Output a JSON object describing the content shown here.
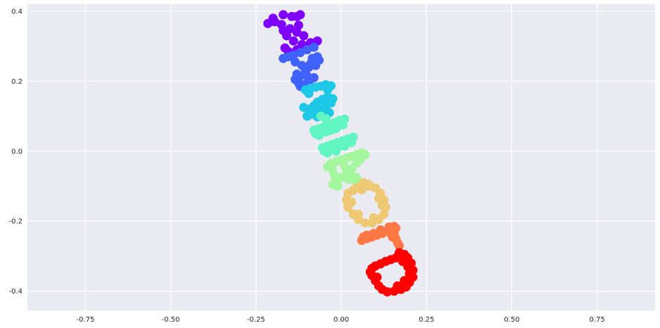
{
  "chart_data": {
    "type": "scatter",
    "title": "",
    "xlabel": "",
    "ylabel": "",
    "xlim": [
      -0.92,
      0.92
    ],
    "ylim": [
      -0.455,
      0.42
    ],
    "xticks": [
      -0.75,
      -0.5,
      -0.25,
      0.0,
      0.25,
      0.5,
      0.75
    ],
    "xtick_labels": [
      "-0.75",
      "-0.50",
      "-0.25",
      "0.00",
      "0.25",
      "0.50",
      "0.75"
    ],
    "yticks": [
      -0.4,
      -0.2,
      0.0,
      0.2,
      0.4
    ],
    "ytick_labels": [
      "-0.4",
      "-0.2",
      "0.0",
      "0.2",
      "0.4"
    ],
    "grid": true,
    "background_color": "#eaeaf2",
    "colormap": "rainbow",
    "groups": [
      {
        "color": "#8000ff",
        "points": [
          [
            -0.215,
            0.365
          ],
          [
            -0.195,
            0.37
          ],
          [
            -0.175,
            0.362
          ],
          [
            -0.17,
            0.345
          ],
          [
            -0.15,
            0.35
          ],
          [
            -0.13,
            0.34
          ],
          [
            -0.125,
            0.36
          ],
          [
            -0.13,
            0.385
          ],
          [
            -0.12,
            0.39
          ],
          [
            -0.145,
            0.385
          ],
          [
            -0.17,
            0.39
          ],
          [
            -0.2,
            0.38
          ],
          [
            -0.16,
            0.33
          ],
          [
            -0.11,
            0.33
          ],
          [
            -0.14,
            0.315
          ],
          [
            -0.115,
            0.305
          ],
          [
            -0.09,
            0.31
          ],
          [
            -0.07,
            0.315
          ],
          [
            -0.165,
            0.295
          ],
          [
            -0.155,
            0.285
          ],
          [
            -0.13,
            0.29
          ],
          [
            -0.105,
            0.295
          ],
          [
            -0.08,
            0.305
          ]
        ]
      },
      {
        "color": "#4062fa",
        "points": [
          [
            -0.17,
            0.265
          ],
          [
            -0.155,
            0.27
          ],
          [
            -0.14,
            0.275
          ],
          [
            -0.12,
            0.282
          ],
          [
            -0.1,
            0.29
          ],
          [
            -0.08,
            0.297
          ],
          [
            -0.135,
            0.255
          ],
          [
            -0.115,
            0.245
          ],
          [
            -0.095,
            0.24
          ],
          [
            -0.075,
            0.245
          ],
          [
            -0.065,
            0.26
          ],
          [
            -0.07,
            0.27
          ],
          [
            -0.085,
            0.265
          ],
          [
            -0.09,
            0.25
          ],
          [
            -0.105,
            0.23
          ],
          [
            -0.12,
            0.215
          ],
          [
            -0.135,
            0.205
          ],
          [
            -0.125,
            0.195
          ],
          [
            -0.11,
            0.19
          ],
          [
            -0.095,
            0.2
          ],
          [
            -0.08,
            0.21
          ],
          [
            -0.1,
            0.215
          ],
          [
            -0.12,
            0.185
          ],
          [
            -0.13,
            0.22
          ]
        ]
      },
      {
        "color": "#1cc8e6",
        "points": [
          [
            -0.105,
            0.175
          ],
          [
            -0.09,
            0.18
          ],
          [
            -0.075,
            0.183
          ],
          [
            -0.06,
            0.186
          ],
          [
            -0.045,
            0.19
          ],
          [
            -0.03,
            0.187
          ],
          [
            -0.095,
            0.165
          ],
          [
            -0.04,
            0.175
          ],
          [
            -0.11,
            0.125
          ],
          [
            -0.095,
            0.12
          ],
          [
            -0.08,
            0.13
          ],
          [
            -0.07,
            0.14
          ],
          [
            -0.055,
            0.148
          ],
          [
            -0.04,
            0.155
          ],
          [
            -0.025,
            0.15
          ],
          [
            -0.03,
            0.138
          ],
          [
            -0.045,
            0.13
          ],
          [
            -0.06,
            0.12
          ],
          [
            -0.075,
            0.11
          ],
          [
            -0.09,
            0.105
          ],
          [
            -0.1,
            0.1
          ],
          [
            -0.055,
            0.105
          ],
          [
            -0.035,
            0.11
          ],
          [
            -0.07,
            0.098
          ]
        ]
      },
      {
        "color": "#60f5c1",
        "points": [
          [
            -0.08,
            0.06
          ],
          [
            -0.065,
            0.065
          ],
          [
            -0.05,
            0.07
          ],
          [
            -0.035,
            0.076
          ],
          [
            -0.02,
            0.082
          ],
          [
            -0.005,
            0.088
          ],
          [
            0.01,
            0.092
          ],
          [
            0.005,
            0.075
          ],
          [
            -0.015,
            0.065
          ],
          [
            -0.03,
            0.06
          ],
          [
            -0.045,
            0.055
          ],
          [
            -0.065,
            0.045
          ],
          [
            -0.075,
            0.05
          ],
          [
            -0.06,
            0.1
          ],
          [
            -0.045,
            0.093
          ],
          [
            -0.055,
            0.01
          ],
          [
            -0.04,
            0.015
          ],
          [
            -0.025,
            0.02
          ],
          [
            -0.01,
            0.025
          ],
          [
            0.005,
            0.03
          ],
          [
            0.02,
            0.035
          ],
          [
            0.035,
            0.04
          ],
          [
            0.03,
            0.025
          ],
          [
            0.01,
            0.015
          ],
          [
            -0.01,
            0.01
          ],
          [
            -0.03,
            0.005
          ],
          [
            -0.05,
            0.0
          ],
          [
            -0.04,
            -0.005
          ],
          [
            -0.015,
            0.0
          ]
        ]
      },
      {
        "color": "#a4f79c",
        "points": [
          [
            -0.04,
            -0.045
          ],
          [
            -0.03,
            -0.035
          ],
          [
            -0.015,
            -0.03
          ],
          [
            0.0,
            -0.025
          ],
          [
            0.015,
            -0.02
          ],
          [
            0.03,
            -0.015
          ],
          [
            0.045,
            -0.01
          ],
          [
            0.06,
            -0.005
          ],
          [
            0.07,
            -0.01
          ],
          [
            0.055,
            -0.025
          ],
          [
            -0.025,
            -0.055
          ],
          [
            -0.02,
            -0.07
          ],
          [
            -0.015,
            -0.085
          ],
          [
            -0.01,
            -0.1
          ],
          [
            -0.025,
            -0.095
          ],
          [
            0.0,
            -0.075
          ],
          [
            0.015,
            -0.065
          ],
          [
            0.03,
            -0.07
          ],
          [
            0.045,
            -0.075
          ],
          [
            0.04,
            -0.085
          ],
          [
            0.02,
            -0.08
          ],
          [
            0.03,
            -0.05
          ],
          [
            0.01,
            -0.045
          ],
          [
            0.045,
            -0.035
          ]
        ]
      },
      {
        "color": "#eec873",
        "points": [
          [
            0.06,
            -0.11
          ],
          [
            0.08,
            -0.1
          ],
          [
            0.1,
            -0.105
          ],
          [
            0.115,
            -0.12
          ],
          [
            0.125,
            -0.14
          ],
          [
            0.13,
            -0.16
          ],
          [
            0.125,
            -0.18
          ],
          [
            0.11,
            -0.195
          ],
          [
            0.09,
            -0.205
          ],
          [
            0.07,
            -0.205
          ],
          [
            0.05,
            -0.195
          ],
          [
            0.035,
            -0.18
          ],
          [
            0.02,
            -0.16
          ],
          [
            0.015,
            -0.14
          ],
          [
            0.02,
            -0.12
          ],
          [
            0.035,
            -0.112
          ],
          [
            0.045,
            -0.105
          ],
          [
            0.065,
            -0.09
          ],
          [
            0.08,
            -0.095
          ],
          [
            0.11,
            -0.135
          ],
          [
            0.05,
            -0.18
          ],
          [
            0.03,
            -0.145
          ],
          [
            0.095,
            -0.19
          ],
          [
            0.12,
            -0.155
          ]
        ]
      },
      {
        "color": "#ff7843",
        "points": [
          [
            0.06,
            -0.255
          ],
          [
            0.075,
            -0.25
          ],
          [
            0.09,
            -0.245
          ],
          [
            0.105,
            -0.24
          ],
          [
            0.12,
            -0.235
          ],
          [
            0.135,
            -0.23
          ],
          [
            0.15,
            -0.225
          ],
          [
            0.16,
            -0.22
          ],
          [
            0.155,
            -0.215
          ],
          [
            0.14,
            -0.217
          ],
          [
            0.115,
            -0.225
          ],
          [
            0.095,
            -0.235
          ],
          [
            0.075,
            -0.24
          ],
          [
            0.065,
            -0.245
          ],
          [
            0.155,
            -0.235
          ],
          [
            0.16,
            -0.25
          ],
          [
            0.165,
            -0.262
          ],
          [
            0.17,
            -0.27
          ],
          [
            0.15,
            -0.245
          ]
        ]
      },
      {
        "color": "#ff0000",
        "points": [
          [
            0.09,
            -0.335
          ],
          [
            0.1,
            -0.328
          ],
          [
            0.115,
            -0.322
          ],
          [
            0.13,
            -0.315
          ],
          [
            0.145,
            -0.31
          ],
          [
            0.16,
            -0.305
          ],
          [
            0.175,
            -0.3
          ],
          [
            0.185,
            -0.295
          ],
          [
            0.195,
            -0.305
          ],
          [
            0.205,
            -0.32
          ],
          [
            0.21,
            -0.34
          ],
          [
            0.21,
            -0.36
          ],
          [
            0.2,
            -0.375
          ],
          [
            0.19,
            -0.388
          ],
          [
            0.175,
            -0.395
          ],
          [
            0.155,
            -0.4
          ],
          [
            0.135,
            -0.402
          ],
          [
            0.12,
            -0.395
          ],
          [
            0.11,
            -0.385
          ],
          [
            0.1,
            -0.37
          ],
          [
            0.09,
            -0.355
          ],
          [
            0.085,
            -0.345
          ],
          [
            0.105,
            -0.36
          ],
          [
            0.165,
            -0.385
          ],
          [
            0.185,
            -0.37
          ],
          [
            0.2,
            -0.35
          ],
          [
            0.195,
            -0.33
          ],
          [
            0.18,
            -0.315
          ],
          [
            0.17,
            -0.29
          ]
        ]
      }
    ]
  }
}
